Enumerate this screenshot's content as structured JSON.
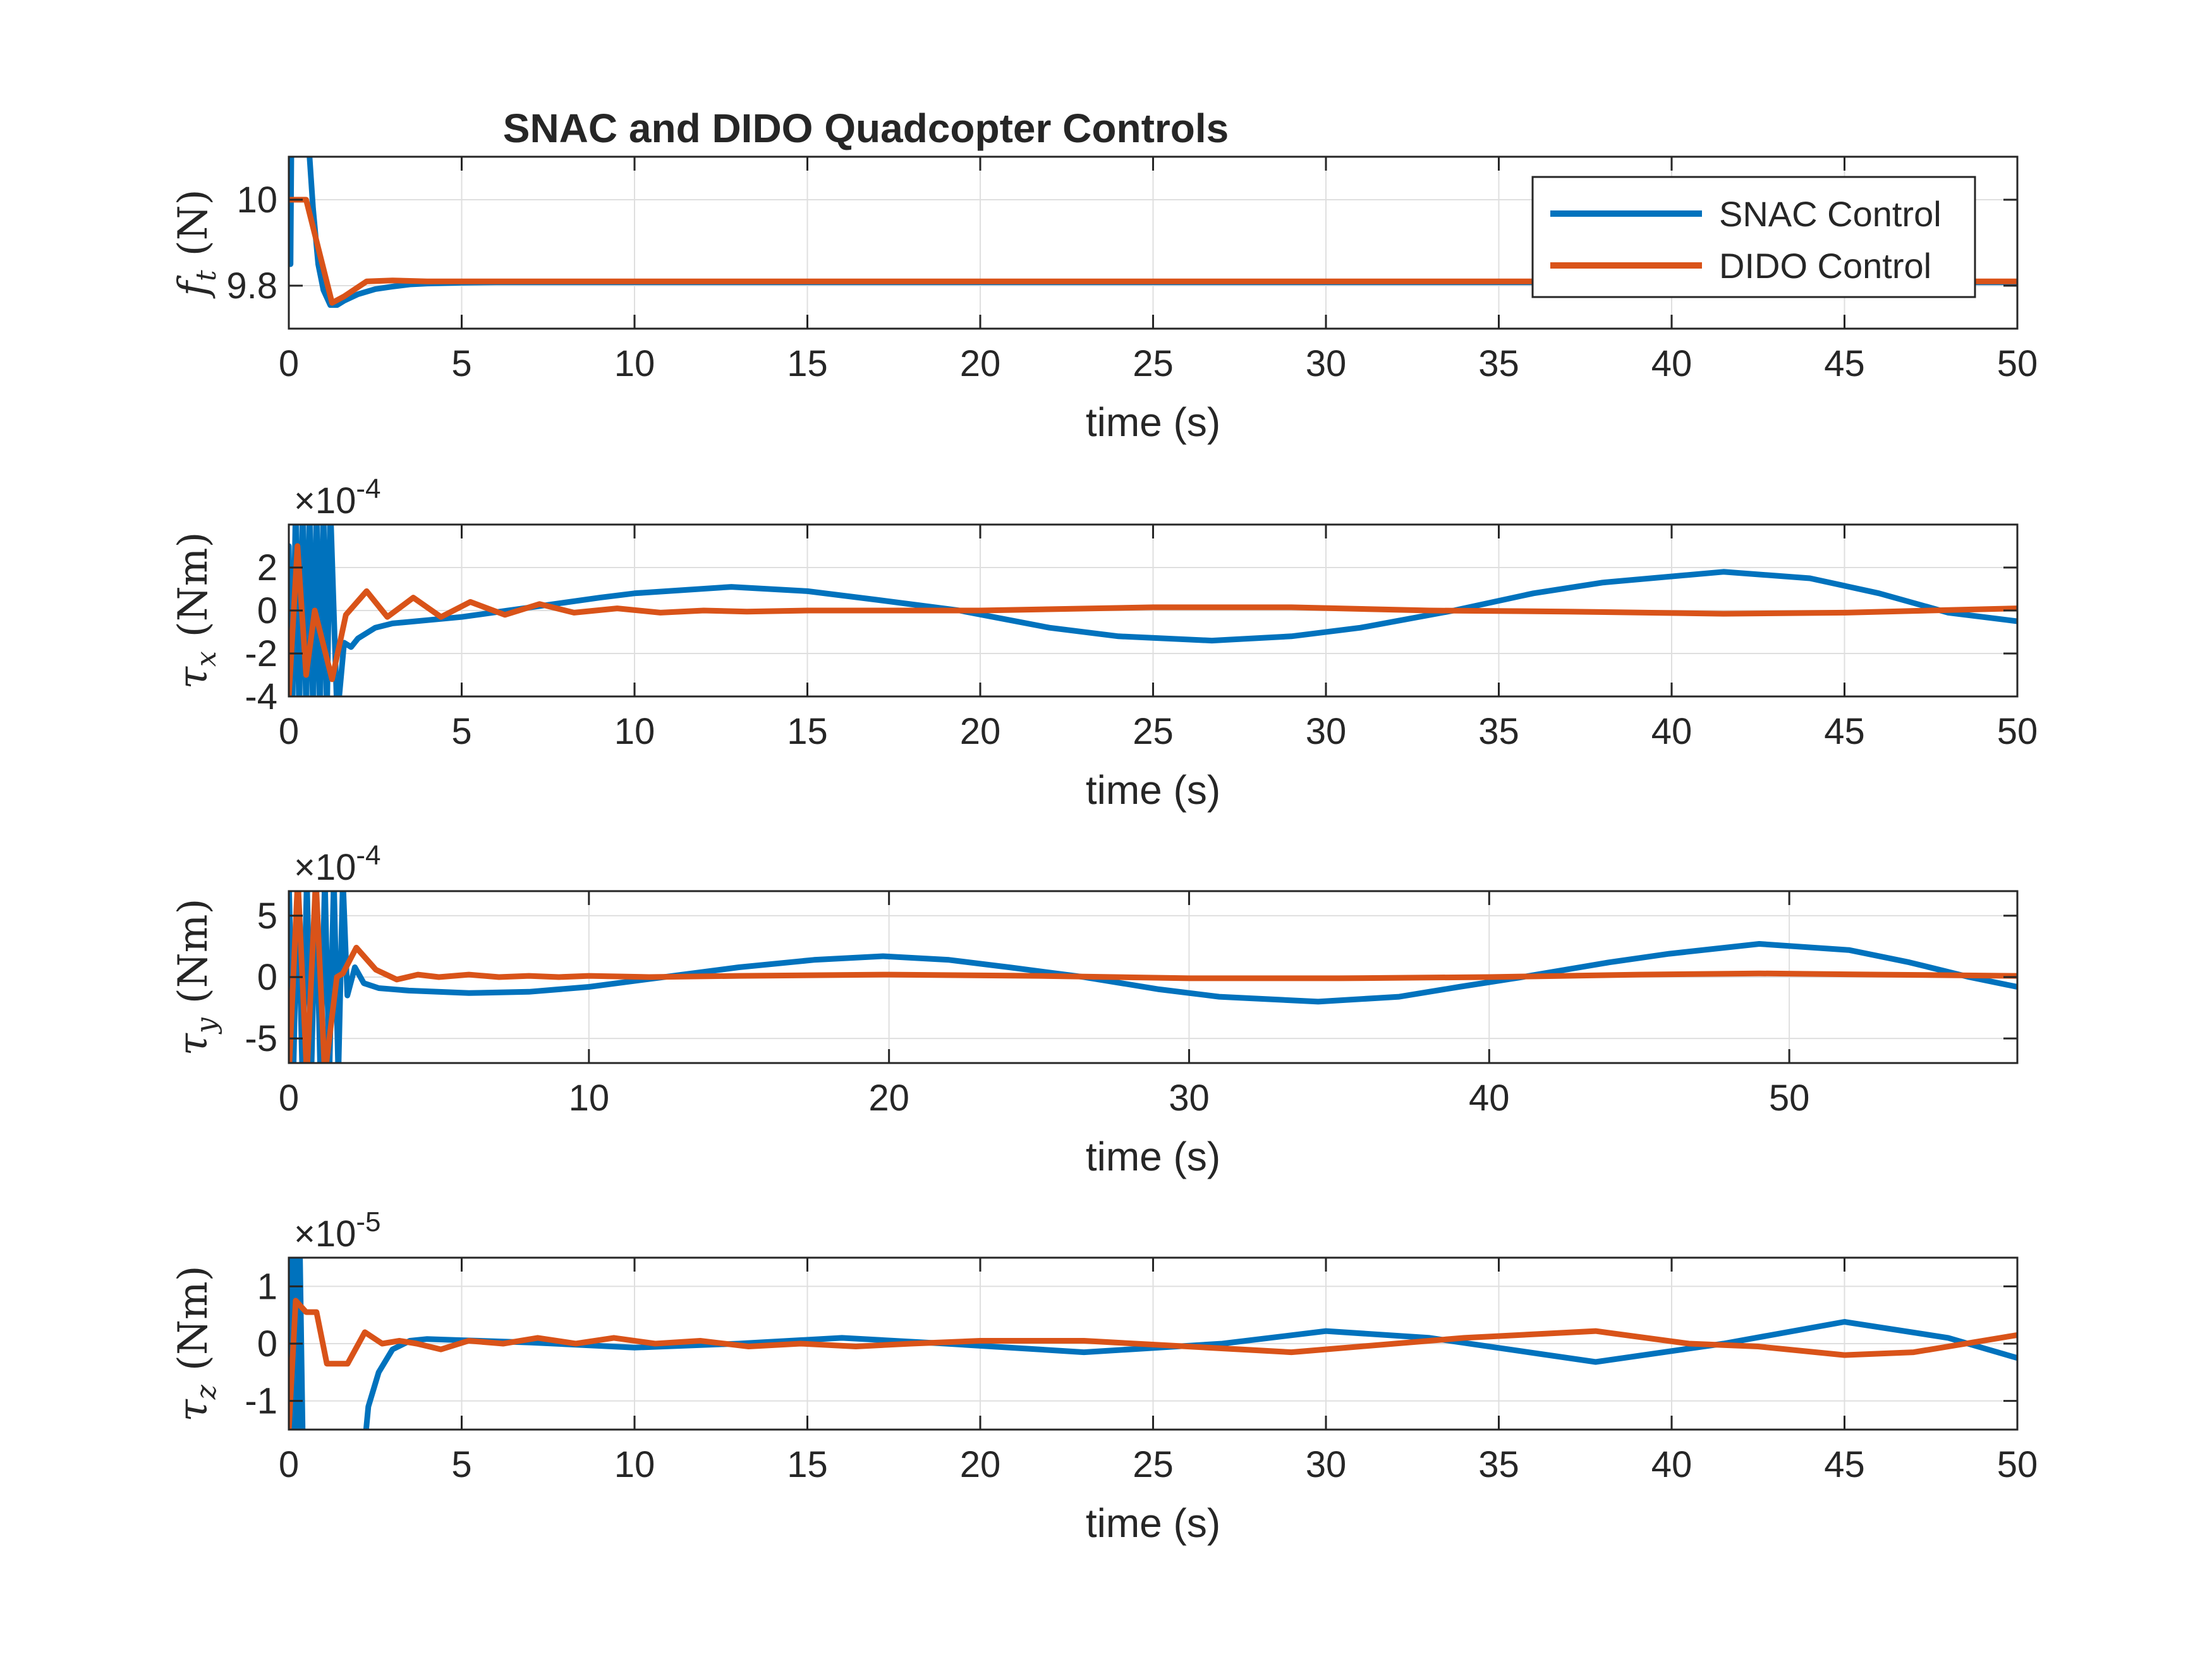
{
  "figure": {
    "title": "SNAC and DIDO Quadcopter Controls",
    "legend": {
      "placement": "top-right of first subplot",
      "entries": [
        {
          "label": "SNAC Control",
          "color": "#0072BD"
        },
        {
          "label": "DIDO Control",
          "color": "#D95319"
        }
      ]
    }
  },
  "chart_data": [
    {
      "type": "line",
      "ylabel": "f_t (N)",
      "ylabel_symbol": "f",
      "ylabel_sub": "t",
      "ylabel_unit": "(N)",
      "xlabel": "time (s)",
      "xlim": [
        0,
        50
      ],
      "ylim": [
        9.7,
        10.1
      ],
      "xticks": [
        0,
        5,
        10,
        15,
        20,
        25,
        30,
        35,
        40,
        45,
        50
      ],
      "xtick_labels": [
        "0",
        "5",
        "10",
        "15",
        "20",
        "25",
        "30",
        "35",
        "40",
        "45",
        "50"
      ],
      "yticks": [
        9.8,
        10
      ],
      "ytick_labels": [
        "9.8",
        "10"
      ],
      "exponent_label": "",
      "grid": true,
      "series": [
        {
          "name": "SNAC Control",
          "color": "#0072BD",
          "x": [
            0,
            0.02,
            0.05,
            0.08,
            0.5,
            0.6,
            0.7,
            0.85,
            1.0,
            1.2,
            1.4,
            1.6,
            2.0,
            2.5,
            3.0,
            3.5,
            4.0,
            5.0,
            6.0,
            8.0,
            50
          ],
          "y": [
            9.85,
            10.2,
            9.85,
            10.2,
            10.2,
            10.1,
            9.98,
            9.85,
            9.79,
            9.755,
            9.755,
            9.765,
            9.78,
            9.792,
            9.798,
            9.803,
            9.805,
            9.807,
            9.808,
            9.808,
            9.808
          ]
        },
        {
          "name": "DIDO Control",
          "color": "#D95319",
          "x": [
            0,
            0.5,
            1.25,
            1.6,
            2.25,
            3.0,
            4.0,
            50
          ],
          "y": [
            10.0,
            10.0,
            9.76,
            9.775,
            9.81,
            9.812,
            9.81,
            9.81
          ]
        }
      ]
    },
    {
      "type": "line",
      "ylabel": "tau_x (Nm)",
      "ylabel_symbol": "τ",
      "ylabel_sub": "x",
      "ylabel_unit": "(Nm)",
      "xlabel": "time (s)",
      "xlim": [
        0,
        50
      ],
      "ylim": [
        -4,
        4
      ],
      "xticks": [
        0,
        5,
        10,
        15,
        20,
        25,
        30,
        35,
        40,
        45,
        50
      ],
      "xtick_labels": [
        "0",
        "5",
        "10",
        "15",
        "20",
        "25",
        "30",
        "35",
        "40",
        "45",
        "50"
      ],
      "yticks": [
        -4,
        -2,
        0,
        2
      ],
      "ytick_labels": [
        "-4",
        "-2",
        "0",
        "2"
      ],
      "exponent_label": "-4",
      "grid": true,
      "series": [
        {
          "name": "SNAC Control",
          "color": "#0072BD",
          "x": [
            0,
            0.1,
            0.2,
            0.3,
            0.4,
            0.5,
            0.6,
            0.7,
            0.8,
            0.9,
            1.0,
            1.1,
            1.2,
            1.4,
            1.6,
            1.8,
            2.0,
            2.5,
            3.0,
            4.0,
            5.0,
            7.0,
            9.0,
            10.0,
            12.8,
            15.0,
            17.0,
            19.4,
            22.0,
            24.0,
            26.7,
            29.0,
            31.0,
            33.7,
            36.0,
            38.0,
            41.5,
            44.0,
            46.0,
            48.0,
            50.0
          ],
          "y": [
            3,
            -5,
            5,
            -5,
            5,
            -5,
            5,
            -5,
            5,
            -5,
            5,
            -5,
            5,
            -5,
            -1.5,
            -1.7,
            -1.3,
            -0.8,
            -0.6,
            -0.45,
            -0.3,
            0.15,
            0.6,
            0.8,
            1.1,
            0.9,
            0.5,
            0,
            -0.8,
            -1.2,
            -1.4,
            -1.2,
            -0.8,
            0,
            0.8,
            1.3,
            1.8,
            1.5,
            0.8,
            -0.1,
            -0.5
          ]
        },
        {
          "name": "DIDO Control",
          "color": "#D95319",
          "x": [
            0,
            0.25,
            0.5,
            0.75,
            1.25,
            1.65,
            2.25,
            2.85,
            3.6,
            4.4,
            5.25,
            6.25,
            7.25,
            8.25,
            9.5,
            10.75,
            12.0,
            13.25,
            15.0,
            20.0,
            25.0,
            29.0,
            33.0,
            37.0,
            41.5,
            45.0,
            50.0
          ],
          "y": [
            -4,
            3,
            -3,
            0,
            -3.2,
            -0.2,
            0.9,
            -0.3,
            0.6,
            -0.3,
            0.4,
            -0.2,
            0.3,
            -0.1,
            0.1,
            -0.1,
            0.0,
            -0.05,
            0.0,
            0.0,
            0.15,
            0.15,
            0.0,
            -0.05,
            -0.15,
            -0.1,
            0.1
          ]
        }
      ]
    },
    {
      "type": "line",
      "ylabel": "tau_y (Nm)",
      "ylabel_symbol": "τ",
      "ylabel_sub": "y",
      "ylabel_unit": "(Nm)",
      "xlabel": "time (s)",
      "xlim": [
        0,
        57.6
      ],
      "ylim": [
        -7,
        7
      ],
      "xticks": [
        0,
        10,
        20,
        30,
        40,
        50
      ],
      "xtick_labels": [
        "0",
        "10",
        "20",
        "30",
        "40",
        "50"
      ],
      "yticks": [
        -5,
        0,
        5
      ],
      "ytick_labels": [
        "-5",
        "0",
        "5"
      ],
      "exponent_label": "-4",
      "grid": true,
      "series": [
        {
          "name": "SNAC Control",
          "color": "#0072BD",
          "x": [
            0,
            0.15,
            0.3,
            0.45,
            0.6,
            0.75,
            0.9,
            1.05,
            1.2,
            1.35,
            1.5,
            1.65,
            1.8,
            1.95,
            2.2,
            2.5,
            3.0,
            4.0,
            6.0,
            8.0,
            10.0,
            12.5,
            15.0,
            17.5,
            19.8,
            22.0,
            24.0,
            26.5,
            29.0,
            31.0,
            34.3,
            37.0,
            39.0,
            41.1,
            44.0,
            46.0,
            49.0,
            52.0,
            54.0,
            56.0,
            57.6
          ],
          "y": [
            8,
            -8,
            8,
            -8,
            8,
            -8,
            8,
            -8,
            8,
            -8,
            8,
            -8,
            8,
            -1.5,
            0.8,
            -0.5,
            -0.9,
            -1.1,
            -1.3,
            -1.2,
            -0.8,
            0,
            0.8,
            1.4,
            1.7,
            1.4,
            0.8,
            0,
            -1.0,
            -1.6,
            -2.0,
            -1.6,
            -0.8,
            0,
            1.2,
            1.9,
            2.7,
            2.2,
            1.2,
            0.0,
            -0.8
          ]
        },
        {
          "name": "DIDO Control",
          "color": "#D95319",
          "x": [
            0,
            0.3,
            0.6,
            0.9,
            1.2,
            1.6,
            1.8,
            2.25,
            2.9,
            3.6,
            4.3,
            5.0,
            6.0,
            7.0,
            8.0,
            9.0,
            10.0,
            12.0,
            15.0,
            20.0,
            25.0,
            30.0,
            35.0,
            40.0,
            45.0,
            49.0,
            53.0,
            57.6
          ],
          "y": [
            -8,
            8,
            -8,
            8,
            -8,
            0,
            0.3,
            2.4,
            0.6,
            -0.2,
            0.2,
            0.0,
            0.2,
            0.0,
            0.1,
            0.0,
            0.1,
            0.0,
            0.1,
            0.2,
            0.1,
            -0.1,
            -0.1,
            0.0,
            0.2,
            0.3,
            0.2,
            0.1
          ]
        }
      ]
    },
    {
      "type": "line",
      "ylabel": "tau_z (Nm)",
      "ylabel_symbol": "τ",
      "ylabel_sub": "z",
      "ylabel_unit": "(Nm)",
      "xlabel": "time (s)",
      "xlim": [
        0,
        50
      ],
      "ylim": [
        -1.5,
        1.5
      ],
      "xticks": [
        0,
        5,
        10,
        15,
        20,
        25,
        30,
        35,
        40,
        45,
        50
      ],
      "xtick_labels": [
        "0",
        "5",
        "10",
        "15",
        "20",
        "25",
        "30",
        "35",
        "40",
        "45",
        "50"
      ],
      "yticks": [
        -1,
        0,
        1
      ],
      "ytick_labels": [
        "-1",
        "0",
        "1"
      ],
      "exponent_label": "-5",
      "grid": true,
      "series": [
        {
          "name": "SNAC Control",
          "color": "#0072BD",
          "x": [
            0,
            0.08,
            0.16,
            0.24,
            0.32,
            0.4,
            1.0,
            2.0,
            2.3,
            2.6,
            3.0,
            3.5,
            4.0,
            5.0,
            7.0,
            10.0,
            13.0,
            16.0,
            19.0,
            23.0,
            27.0,
            30.0,
            33.0,
            37.8,
            41.5,
            45.0,
            48.0,
            50.0
          ],
          "y": [
            1.6,
            -1.6,
            1.6,
            -1.6,
            1.6,
            -1.6,
            -3,
            -3,
            -1.1,
            -0.5,
            -0.1,
            0.05,
            0.08,
            0.06,
            0.02,
            -0.07,
            0.0,
            0.1,
            0.0,
            -0.15,
            0.0,
            0.22,
            0.1,
            -0.32,
            0.0,
            0.38,
            0.1,
            -0.25
          ]
        },
        {
          "name": "DIDO Control",
          "color": "#D95319",
          "x": [
            0,
            0.2,
            0.5,
            0.8,
            1.1,
            1.4,
            1.7,
            2.2,
            2.7,
            3.2,
            3.7,
            4.4,
            5.2,
            6.2,
            7.2,
            8.3,
            9.4,
            10.6,
            11.9,
            13.3,
            14.8,
            16.4,
            18.0,
            20.0,
            23.0,
            26.0,
            29.0,
            31.0,
            34.0,
            37.8,
            40.5,
            42.5,
            45.0,
            47.0,
            50.0
          ],
          "y": [
            -1.5,
            0.75,
            0.55,
            0.55,
            -0.35,
            -0.35,
            -0.35,
            0.2,
            0.0,
            0.05,
            0.0,
            -0.1,
            0.05,
            0.0,
            0.1,
            0.0,
            0.1,
            0.0,
            0.05,
            -0.05,
            0.0,
            -0.05,
            0.0,
            0.05,
            0.05,
            -0.05,
            -0.15,
            -0.05,
            0.1,
            0.22,
            0.0,
            -0.05,
            -0.2,
            -0.15,
            0.15
          ]
        }
      ]
    }
  ]
}
